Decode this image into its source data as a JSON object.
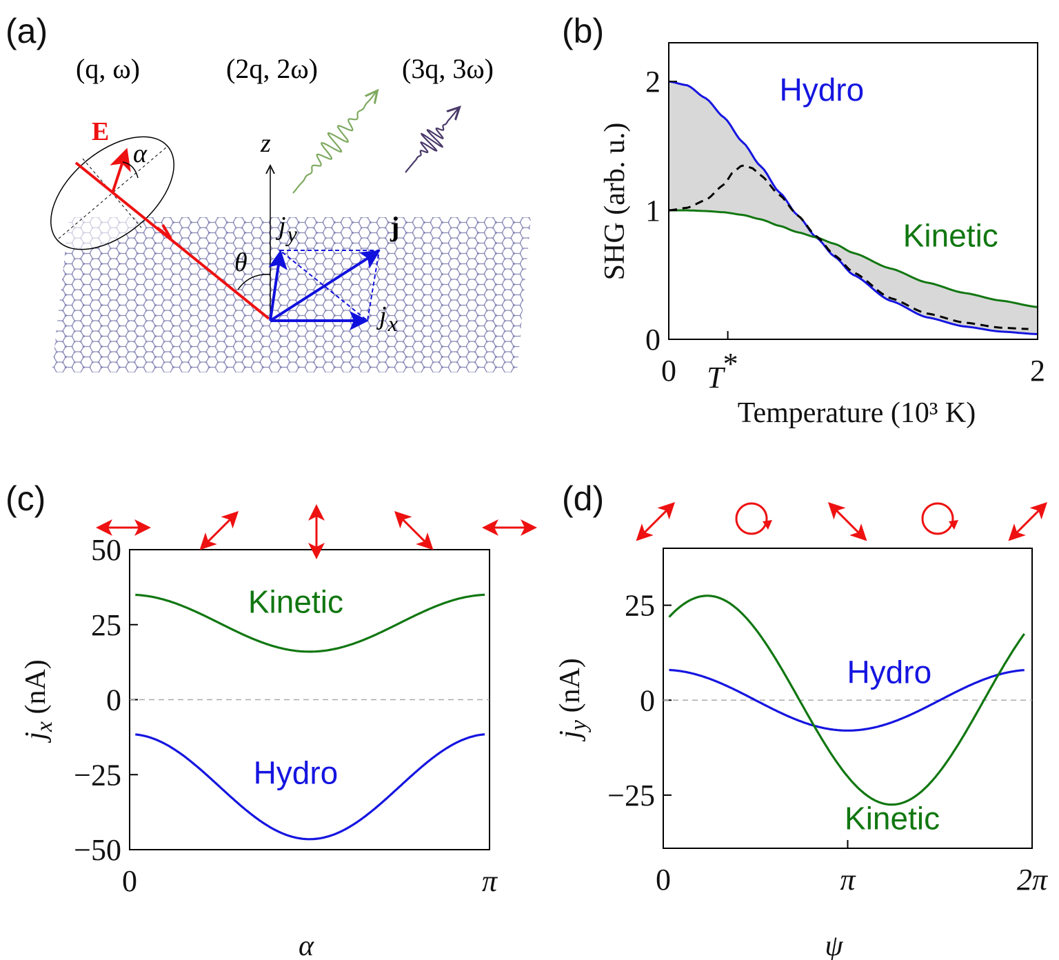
{
  "panels": {
    "a": {
      "label": "(a)",
      "harmonics": [
        "(q, ω)",
        "(2q, 2ω)",
        "(3q, 3ω)"
      ],
      "field_label": "E",
      "angle_alpha": "α",
      "angle_theta": "θ",
      "axis_z": "z",
      "current_label": "j",
      "jx_label": "j",
      "jx_sub": "x",
      "jy_label": "j",
      "jy_sub": "y",
      "colors": {
        "field": "#ee1111",
        "current": "#1111dd",
        "wave2": "#7faa60",
        "wave3": "#4a3a6a",
        "lattice": "#8a8ab8"
      }
    },
    "b": {
      "label": "(b)",
      "t_star_label": "T*"
    },
    "c": {
      "label": "(c)"
    },
    "d": {
      "label": "(d)"
    }
  },
  "chart_data": [
    {
      "id": "b",
      "type": "line",
      "title": "",
      "xlabel": "Temperature (10³ K)",
      "ylabel": "SHG (arb. u.)",
      "xlim": [
        0,
        2
      ],
      "ylim": [
        0,
        2.3
      ],
      "xticks": [
        {
          "value": 0,
          "label": "0"
        },
        {
          "value": 2,
          "label": "2"
        }
      ],
      "yticks": [
        {
          "value": 0,
          "label": "0"
        },
        {
          "value": 1,
          "label": "1"
        },
        {
          "value": 2,
          "label": "2"
        }
      ],
      "marker_tick": {
        "value": 0.32,
        "label": "T*"
      },
      "shaded_between": [
        "Hydro",
        "Kinetic"
      ],
      "grid": false,
      "series": [
        {
          "name": "Hydro",
          "color": "#1515e0",
          "style": "solid",
          "x": [
            0,
            0.1,
            0.2,
            0.3,
            0.4,
            0.5,
            0.6,
            0.7,
            0.8,
            0.9,
            1.0,
            1.2,
            1.4,
            1.6,
            1.8,
            2.0
          ],
          "y": [
            2.0,
            1.97,
            1.87,
            1.72,
            1.53,
            1.34,
            1.14,
            0.96,
            0.79,
            0.64,
            0.5,
            0.3,
            0.17,
            0.1,
            0.06,
            0.04
          ]
        },
        {
          "name": "Kinetic",
          "color": "#117711",
          "style": "solid",
          "x": [
            0,
            0.1,
            0.2,
            0.3,
            0.4,
            0.5,
            0.6,
            0.7,
            0.8,
            0.9,
            1.0,
            1.2,
            1.4,
            1.6,
            1.8,
            2.0
          ],
          "y": [
            1.0,
            1.0,
            0.995,
            0.985,
            0.965,
            0.93,
            0.88,
            0.83,
            0.79,
            0.74,
            0.67,
            0.55,
            0.44,
            0.36,
            0.3,
            0.25
          ]
        },
        {
          "name": "",
          "color": "#000000",
          "style": "dashed",
          "x": [
            0,
            0.1,
            0.2,
            0.3,
            0.35,
            0.4,
            0.45,
            0.5,
            0.6,
            0.7,
            0.8,
            0.9,
            1.0,
            1.2,
            1.4,
            1.6,
            1.8,
            1.95
          ],
          "y": [
            1.0,
            1.02,
            1.08,
            1.2,
            1.3,
            1.35,
            1.33,
            1.27,
            1.12,
            0.96,
            0.8,
            0.65,
            0.52,
            0.32,
            0.2,
            0.13,
            0.09,
            0.08
          ]
        }
      ],
      "annotations": [
        {
          "text": "Hydro",
          "color": "#1515e0",
          "x": 0.6,
          "y": 1.85
        },
        {
          "text": "Kinetic",
          "color": "#117711",
          "x": 1.27,
          "y": 0.72
        }
      ]
    },
    {
      "id": "c",
      "type": "line",
      "title": "",
      "xlabel": "α",
      "ylabel": "jx (nA)",
      "xlim": [
        0,
        3.14159
      ],
      "ylim": [
        -50,
        50
      ],
      "xticks": [
        {
          "value": 0,
          "label": "0"
        },
        {
          "value": 3.14159,
          "label": "π"
        }
      ],
      "yticks": [
        {
          "value": 50,
          "label": "50"
        },
        {
          "value": 25,
          "label": "25"
        },
        {
          "value": 0,
          "label": "0"
        },
        {
          "value": -25,
          "label": "−25"
        },
        {
          "value": -50,
          "label": "−50"
        }
      ],
      "zero_line": true,
      "grid": false,
      "polarization_markers": [
        "linear-0",
        "linear-45",
        "linear-90",
        "linear-135",
        "linear-180"
      ],
      "series": [
        {
          "name": "Kinetic",
          "color": "#117711",
          "mean": 25.5,
          "amplitude": 9.5,
          "function": "cos2",
          "phase": 0,
          "xmax": 3.1
        },
        {
          "name": "Hydro",
          "color": "#1515e0",
          "mean": -29,
          "amplitude": 17.5,
          "function": "cos2",
          "phase": 0,
          "xmax": 3.1
        }
      ],
      "annotations": [
        {
          "text": "Kinetic",
          "color": "#117711",
          "x": 1.45,
          "y": 29
        },
        {
          "text": "Hydro",
          "color": "#1515e0",
          "x": 1.45,
          "y": -28
        }
      ]
    },
    {
      "id": "d",
      "type": "line",
      "title": "",
      "xlabel": "ψ",
      "ylabel": "jy (nA)",
      "xlim": [
        0,
        6.28318
      ],
      "ylim": [
        -39,
        40
      ],
      "xticks": [
        {
          "value": 0,
          "label": "0"
        },
        {
          "value": 3.14159,
          "label": "π"
        },
        {
          "value": 6.28318,
          "label": "2π"
        }
      ],
      "yticks": [
        {
          "value": 25,
          "label": "25"
        },
        {
          "value": 0,
          "label": "0"
        },
        {
          "value": -25,
          "label": "−25"
        }
      ],
      "zero_line": true,
      "grid": false,
      "polarization_markers": [
        "linear-45",
        "circular",
        "linear-135",
        "circular",
        "linear-45"
      ],
      "series": [
        {
          "name": "Hydro",
          "color": "#1515e0",
          "mean": 0,
          "amplitude": 8,
          "function": "cos",
          "phase": 0,
          "xmin": 0.1,
          "xmax": 6.15
        },
        {
          "name": "Kinetic",
          "color": "#117711",
          "mean": 0,
          "amplitude": 27.5,
          "function": "cos",
          "phase": 0.75,
          "xmin": 0.1,
          "xmax": 6.15
        }
      ],
      "annotations": [
        {
          "text": "Hydro",
          "color": "#1515e0",
          "x": 3.85,
          "y": 4.5
        },
        {
          "text": "Kinetic",
          "color": "#117711",
          "x": 3.9,
          "y": -34
        }
      ]
    }
  ]
}
